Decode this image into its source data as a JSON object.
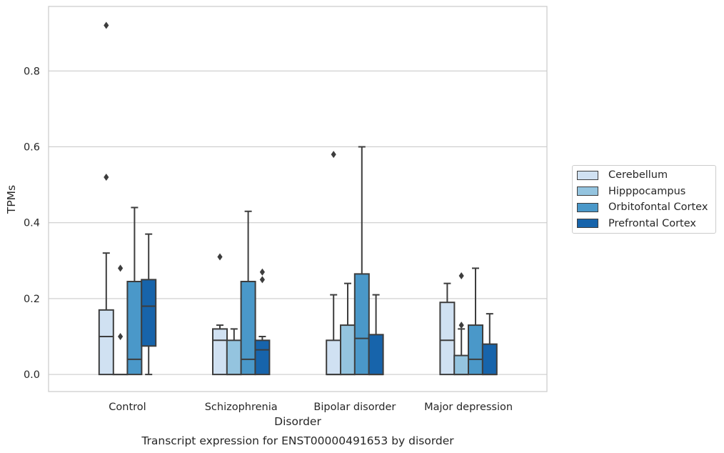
{
  "chart_data": {
    "type": "box",
    "title": "Transcript expression for ENST00000491653 by disorder",
    "xlabel": "Disorder",
    "ylabel": "TPMs",
    "ylim": [
      -0.045,
      0.97
    ],
    "yticks": [
      0.0,
      0.2,
      0.4,
      0.6,
      0.8
    ],
    "ytick_labels": [
      "0.0",
      "0.2",
      "0.4",
      "0.6",
      "0.8"
    ],
    "grid": true,
    "legend_position": "right",
    "categories": [
      "Control",
      "Schizophrenia",
      "Bipolar disorder",
      "Major depression"
    ],
    "series": [
      {
        "name": "Cerebellum",
        "color": "#d0e1f2",
        "boxes": [
          {
            "whislo": 0.0,
            "q1": 0.0,
            "med": 0.1,
            "q3": 0.17,
            "whishi": 0.32,
            "fliers": [
              0.52,
              0.92
            ]
          },
          {
            "whislo": 0.0,
            "q1": 0.0,
            "med": 0.09,
            "q3": 0.12,
            "whishi": 0.13,
            "fliers": [
              0.31
            ]
          },
          {
            "whislo": 0.0,
            "q1": 0.0,
            "med": 0.0,
            "q3": 0.09,
            "whishi": 0.21,
            "fliers": [
              0.58
            ]
          },
          {
            "whislo": 0.0,
            "q1": 0.0,
            "med": 0.09,
            "q3": 0.19,
            "whishi": 0.24,
            "fliers": []
          }
        ]
      },
      {
        "name": "Hipppocampus",
        "color": "#94c4df",
        "boxes": [
          {
            "whislo": 0.0,
            "q1": 0.0,
            "med": 0.0,
            "q3": 0.0,
            "whishi": 0.0,
            "fliers": [
              0.1,
              0.28
            ]
          },
          {
            "whislo": 0.0,
            "q1": 0.0,
            "med": 0.0,
            "q3": 0.09,
            "whishi": 0.12,
            "fliers": []
          },
          {
            "whislo": 0.0,
            "q1": 0.0,
            "med": 0.0,
            "q3": 0.13,
            "whishi": 0.24,
            "fliers": []
          },
          {
            "whislo": 0.0,
            "q1": 0.0,
            "med": 0.0,
            "q3": 0.05,
            "whishi": 0.12,
            "fliers": [
              0.13,
              0.26
            ]
          }
        ]
      },
      {
        "name": "Orbitofontal Cortex",
        "color": "#4a98c9",
        "boxes": [
          {
            "whislo": 0.0,
            "q1": 0.0,
            "med": 0.04,
            "q3": 0.245,
            "whishi": 0.44,
            "fliers": []
          },
          {
            "whislo": 0.0,
            "q1": 0.0,
            "med": 0.04,
            "q3": 0.245,
            "whishi": 0.43,
            "fliers": []
          },
          {
            "whislo": 0.0,
            "q1": 0.0,
            "med": 0.095,
            "q3": 0.265,
            "whishi": 0.6,
            "fliers": []
          },
          {
            "whislo": 0.0,
            "q1": 0.0,
            "med": 0.04,
            "q3": 0.13,
            "whishi": 0.28,
            "fliers": []
          }
        ]
      },
      {
        "name": "Prefrontal Cortex",
        "color": "#1764ab",
        "boxes": [
          {
            "whislo": 0.0,
            "q1": 0.075,
            "med": 0.18,
            "q3": 0.25,
            "whishi": 0.37,
            "fliers": []
          },
          {
            "whislo": 0.0,
            "q1": 0.0,
            "med": 0.065,
            "q3": 0.09,
            "whishi": 0.1,
            "fliers": [
              0.25,
              0.27
            ]
          },
          {
            "whislo": 0.0,
            "q1": 0.0,
            "med": 0.0,
            "q3": 0.105,
            "whishi": 0.21,
            "fliers": []
          },
          {
            "whislo": 0.0,
            "q1": 0.0,
            "med": 0.0,
            "q3": 0.08,
            "whishi": 0.16,
            "fliers": []
          }
        ]
      }
    ]
  }
}
